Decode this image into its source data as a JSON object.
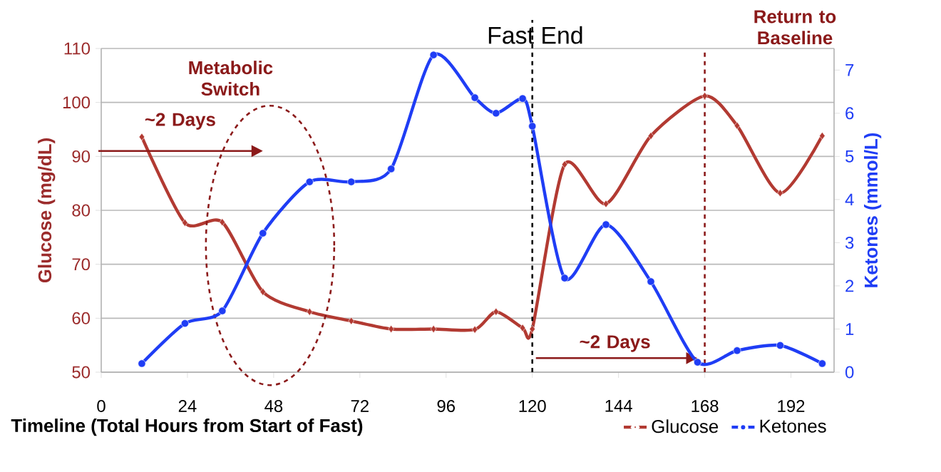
{
  "chart_data": {
    "type": "line",
    "xlabel": "Timeline (Total Hours from Start of Fast)",
    "ylabel": "Glucose (mg/dL)",
    "y2label": "Ketones (mmol/L)",
    "xlim": [
      0,
      204
    ],
    "xticks": [
      0,
      24,
      48,
      72,
      96,
      120,
      144,
      168,
      192
    ],
    "ylim": [
      50,
      110
    ],
    "yticks": [
      50,
      60,
      70,
      80,
      90,
      100,
      110
    ],
    "y2lim": [
      0,
      7.5
    ],
    "y2ticks": [
      0,
      1,
      2,
      3,
      4,
      5,
      6,
      7
    ],
    "grid": "y",
    "legend": "bottom right",
    "series": [
      {
        "name": "Glucose",
        "color": "#b23a32",
        "marker": "diamond",
        "x": [
          11.3,
          23.3,
          33.7,
          45,
          58,
          69.6,
          80.7,
          92.5,
          104,
          109.9,
          117.3,
          120,
          129,
          140.5,
          153,
          168,
          177,
          189,
          200.7
        ],
        "values": [
          93.6,
          77.7,
          77.8,
          64.9,
          61.2,
          59.5,
          58,
          58,
          57.9,
          61.2,
          58.2,
          58,
          88.5,
          81.2,
          93.8,
          101.2,
          95.7,
          83.2,
          93.8
        ]
      },
      {
        "name": "Ketones",
        "color": "#1f3df5",
        "marker": "circle",
        "axis": "y2",
        "x": [
          11.3,
          23.3,
          33.7,
          45,
          58,
          69.6,
          80.7,
          92.5,
          104,
          109.9,
          117.3,
          120,
          129,
          140.5,
          153,
          166,
          177,
          189,
          200.7
        ],
        "values": [
          0.2,
          1.13,
          1.42,
          3.22,
          4.41,
          4.41,
          4.71,
          7.35,
          6.36,
          6.0,
          6.34,
          5.7,
          2.18,
          3.42,
          2.1,
          0.23,
          0.5,
          0.62,
          0.2
        ]
      }
    ],
    "ref_lines": [
      {
        "axis": "x",
        "value": 120,
        "label": "Fast End",
        "color": "#000000",
        "line_style": "dashed"
      },
      {
        "axis": "x",
        "value": 168,
        "label": "Return to Baseline",
        "color": "#8b1a1a",
        "line_style": "dashed"
      }
    ],
    "annotations": [
      "Metabolic Switch",
      "~2 Days",
      "~2 Days"
    ]
  }
}
